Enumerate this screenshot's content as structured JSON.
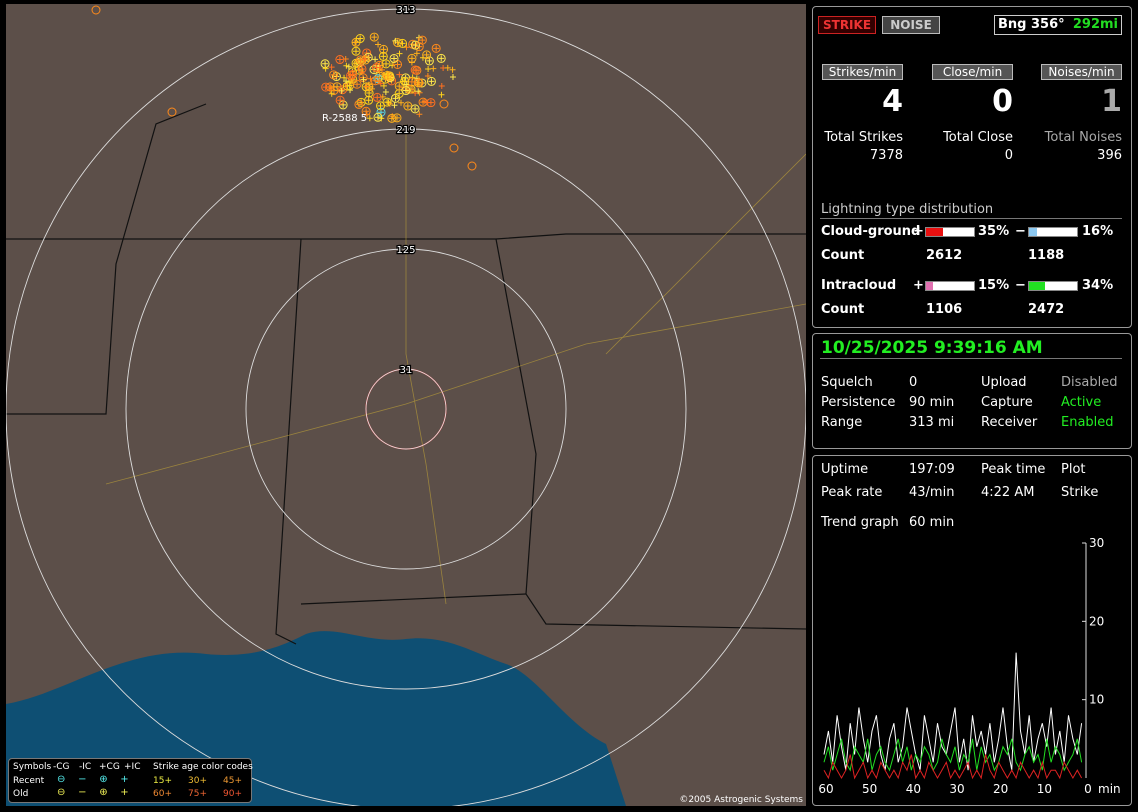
{
  "map": {
    "range_rings": [
      313,
      219,
      125,
      31
    ],
    "marker_label": "R-2588 5",
    "copyright": "©2005 Astrogenic Systems",
    "legend": {
      "symbols": "Symbols",
      "columns": [
        "-CG",
        "-IC",
        "+CG",
        "+IC"
      ],
      "age_title": "Strike age color codes",
      "rows": [
        {
          "label": "Recent",
          "ages": [
            "15+",
            "30+",
            "45+"
          ]
        },
        {
          "label": "Old",
          "ages": [
            "60+",
            "75+",
            "90+"
          ]
        }
      ]
    }
  },
  "status": {
    "buttons": [
      "STRIKE",
      "NOISE"
    ],
    "bearing": "Bng 356°",
    "distance": "292mi",
    "rates": [
      {
        "label": "Strikes/min",
        "value": 4,
        "total_label": "Total Strikes",
        "total": 7378
      },
      {
        "label": "Close/min",
        "value": 0,
        "total_label": "Total Close",
        "total": 0
      },
      {
        "label": "Noises/min",
        "value": 1,
        "total_label": "Total Noises",
        "total": 396
      }
    ],
    "distribution": {
      "title": "Lightning type distribution",
      "count_label": "Count",
      "rows": [
        {
          "name": "Cloud-ground",
          "pos_sign": "+",
          "pos_pct": {
            "value": 35,
            "label": "35%"
          },
          "neg_sign": "−",
          "neg_pct": {
            "value": 16,
            "label": "16%"
          },
          "pos_count": 2612,
          "neg_count": 1188
        },
        {
          "name": "Intracloud",
          "pos_sign": "+",
          "pos_pct": {
            "value": 15,
            "label": "15%"
          },
          "neg_sign": "−",
          "neg_pct": {
            "value": 34,
            "label": "34%"
          },
          "pos_count": 1106,
          "neg_count": 2472
        }
      ]
    }
  },
  "settings": {
    "datetime": "10/25/2025 9:39:16 AM",
    "left": [
      {
        "label": "Squelch",
        "value": 0
      },
      {
        "label": "Persistence",
        "value": "90 min"
      },
      {
        "label": "Range",
        "value": "313 mi"
      }
    ],
    "right": [
      {
        "label": "Upload",
        "value": "Disabled"
      },
      {
        "label": "Capture",
        "value": "Active"
      },
      {
        "label": "Receiver",
        "value": "Enabled"
      }
    ]
  },
  "trend": {
    "uptime_label": "Uptime",
    "uptime": "197:09",
    "peak_time_label": "Peak time",
    "peak_time": "4:22 AM",
    "plot_label": "Plot",
    "plot": "Strike",
    "peak_rate_label": "Peak rate",
    "peak_rate": "43/min",
    "graph_label": "Trend graph",
    "graph": "60 min"
  },
  "chart_data": {
    "type": "line",
    "x_label": "min",
    "x": [
      60,
      59,
      58,
      57,
      56,
      55,
      54,
      53,
      52,
      51,
      50,
      49,
      48,
      47,
      46,
      45,
      44,
      43,
      42,
      41,
      40,
      39,
      38,
      37,
      36,
      35,
      34,
      33,
      32,
      31,
      30,
      29,
      28,
      27,
      26,
      25,
      24,
      23,
      22,
      21,
      20,
      19,
      18,
      17,
      16,
      15,
      14,
      13,
      12,
      11,
      10,
      9,
      8,
      7,
      6,
      5,
      4,
      3,
      2,
      1
    ],
    "xlim": [
      60,
      0
    ],
    "xticks": [
      60,
      50,
      40,
      30,
      20,
      10,
      0
    ],
    "ylim": [
      0,
      30
    ],
    "yticks": [
      10,
      20,
      30
    ],
    "series": [
      {
        "color": "#ffffff",
        "values": [
          3,
          6,
          2,
          8,
          4,
          1,
          7,
          3,
          9,
          5,
          2,
          6,
          8,
          3,
          1,
          5,
          7,
          2,
          4,
          9,
          6,
          3,
          1,
          8,
          5,
          2,
          7,
          4,
          3,
          6,
          9,
          2,
          5,
          1,
          8,
          4,
          6,
          3,
          7,
          2,
          5,
          9,
          4,
          1,
          16,
          6,
          3,
          8,
          2,
          5,
          7,
          4,
          9,
          3,
          6,
          2,
          8,
          5,
          3,
          7
        ]
      },
      {
        "color": "#22dd22",
        "values": [
          2,
          4,
          1,
          3,
          5,
          2,
          1,
          4,
          3,
          2,
          5,
          1,
          3,
          4,
          2,
          1,
          3,
          5,
          2,
          4,
          1,
          3,
          2,
          4,
          3,
          1,
          2,
          5,
          3,
          2,
          4,
          1,
          3,
          2,
          5,
          1,
          4,
          2,
          3,
          1,
          2,
          4,
          3,
          5,
          2,
          1,
          3,
          4,
          2,
          3,
          1,
          5,
          2,
          4,
          3,
          1,
          2,
          3,
          5,
          2
        ]
      },
      {
        "color": "#dd2222",
        "values": [
          1,
          0,
          2,
          1,
          0,
          1,
          3,
          0,
          1,
          2,
          0,
          1,
          0,
          2,
          1,
          0,
          1,
          0,
          2,
          1,
          3,
          0,
          1,
          0,
          2,
          1,
          0,
          1,
          2,
          0,
          1,
          0,
          1,
          2,
          0,
          1,
          0,
          3,
          1,
          0,
          2,
          1,
          0,
          1,
          0,
          2,
          1,
          0,
          1,
          0,
          2,
          0,
          1,
          1,
          0,
          2,
          1,
          0,
          1,
          0
        ]
      }
    ]
  }
}
